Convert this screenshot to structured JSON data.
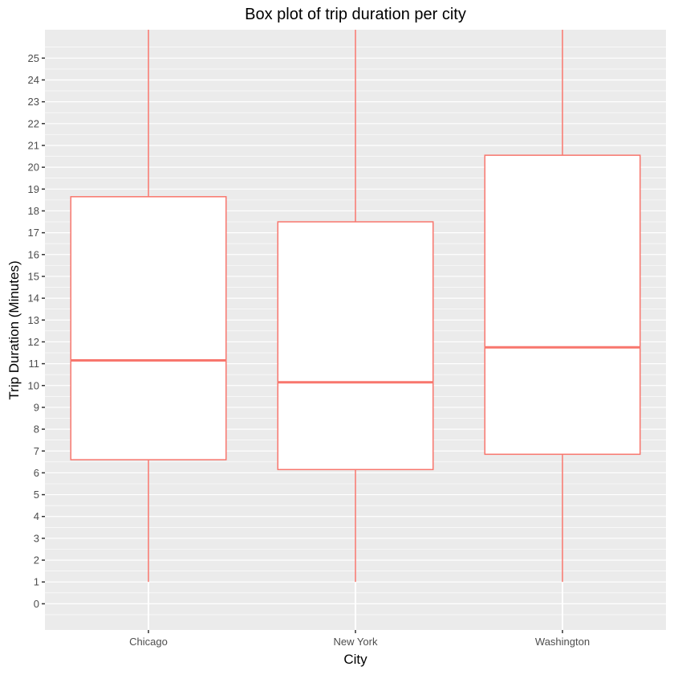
{
  "chart_data": {
    "type": "boxplot",
    "title": "Box plot of trip duration per city",
    "xlabel": "City",
    "ylabel": "Trip Duration (Minutes)",
    "categories": [
      "Chicago",
      "New York",
      "Washington"
    ],
    "boxes": [
      {
        "category": "Chicago",
        "whisker_low": 1,
        "q1": 6.6,
        "median": 11.15,
        "q3": 18.65,
        "whisker_high": 26.3
      },
      {
        "category": "New York",
        "whisker_low": 1,
        "q1": 6.15,
        "median": 10.15,
        "q3": 17.5,
        "whisker_high": 26.3
      },
      {
        "category": "Washington",
        "whisker_low": 1,
        "q1": 6.85,
        "median": 11.75,
        "q3": 20.55,
        "whisker_high": 26.3
      }
    ],
    "y_ticks": [
      0,
      1,
      2,
      3,
      4,
      5,
      6,
      7,
      8,
      9,
      10,
      11,
      12,
      13,
      14,
      15,
      16,
      17,
      18,
      19,
      20,
      21,
      22,
      23,
      24,
      25
    ],
    "ylim": [
      -1.2,
      26.3
    ],
    "grid": true,
    "colors": {
      "box_outline": "#F8766D",
      "panel": "#EBEBEB",
      "grid": "#FFFFFF",
      "box_fill": "#FFFFFF",
      "lower_whisker_segment": "#FFFFFF"
    }
  }
}
